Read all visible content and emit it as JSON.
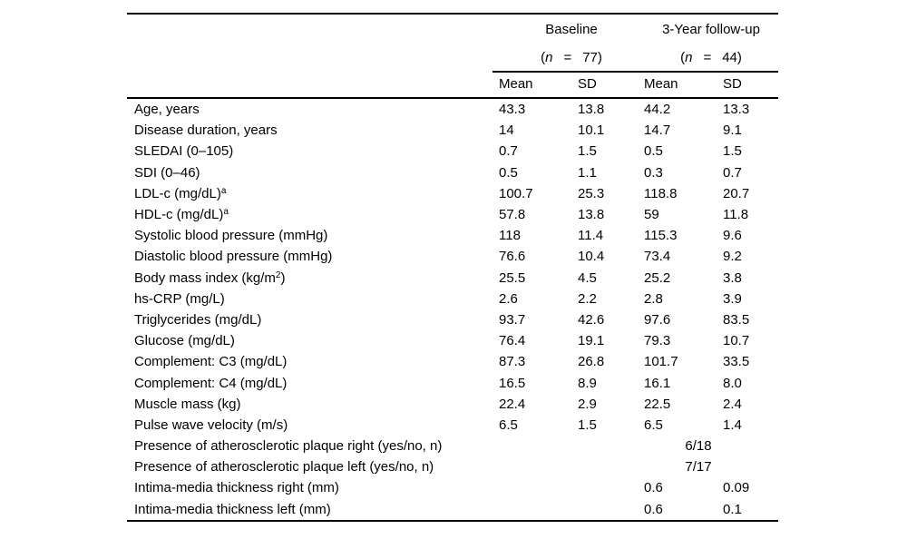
{
  "colors": {
    "text": "#000000",
    "background": "#ffffff",
    "rule": "#000000"
  },
  "table": {
    "header": {
      "groups": [
        {
          "title": "Baseline",
          "n_open": "(",
          "n_symbol": "n",
          "n_eq": "=",
          "n_close": "77)"
        },
        {
          "title": "3-Year follow-up",
          "n_open": "(",
          "n_symbol": "n",
          "n_eq": "=",
          "n_close": "44)"
        }
      ],
      "columns": [
        "Mean",
        "SD",
        "Mean",
        "SD"
      ]
    },
    "rows": [
      {
        "label_pre": "Age, years",
        "label_sup": "",
        "label_post": "",
        "values": [
          "43.3",
          "13.8",
          "44.2",
          "13.3"
        ]
      },
      {
        "label_pre": "Disease duration, years",
        "label_sup": "",
        "label_post": "",
        "values": [
          "14",
          "10.1",
          "14.7",
          "9.1"
        ]
      },
      {
        "label_pre": "SLEDAI (0–105)",
        "label_sup": "",
        "label_post": "",
        "values": [
          "0.7",
          "1.5",
          "0.5",
          "1.5"
        ]
      },
      {
        "label_pre": "SDI (0–46)",
        "label_sup": "",
        "label_post": "",
        "values": [
          "0.5",
          "1.1",
          "0.3",
          "0.7"
        ]
      },
      {
        "label_pre": "LDL-c (mg/dL)",
        "label_sup": "a",
        "label_post": "",
        "values": [
          "100.7",
          "25.3",
          "118.8",
          "20.7"
        ]
      },
      {
        "label_pre": "HDL-c (mg/dL)",
        "label_sup": "a",
        "label_post": "",
        "values": [
          "57.8",
          "13.8",
          "59",
          "11.8"
        ]
      },
      {
        "label_pre": "Systolic blood pressure (mmHg)",
        "label_sup": "",
        "label_post": "",
        "values": [
          "118",
          "11.4",
          "115.3",
          "9.6"
        ]
      },
      {
        "label_pre": "Diastolic blood pressure (mmHg)",
        "label_sup": "",
        "label_post": "",
        "values": [
          "76.6",
          "10.4",
          "73.4",
          "9.2"
        ]
      },
      {
        "label_pre": "Body mass index (kg/m",
        "label_sup": "2",
        "label_post": ")",
        "values": [
          "25.5",
          "4.5",
          "25.2",
          "3.8"
        ]
      },
      {
        "label_pre": "hs-CRP (mg/L)",
        "label_sup": "",
        "label_post": "",
        "values": [
          "2.6",
          "2.2",
          "2.8",
          "3.9"
        ]
      },
      {
        "label_pre": "Triglycerides (mg/dL)",
        "label_sup": "",
        "label_post": "",
        "values": [
          "93.7",
          "42.6",
          "97.6",
          "83.5"
        ]
      },
      {
        "label_pre": "Glucose (mg/dL)",
        "label_sup": "",
        "label_post": "",
        "values": [
          "76.4",
          "19.1",
          "79.3",
          "10.7"
        ]
      },
      {
        "label_pre": "Complement: C3 (mg/dL)",
        "label_sup": "",
        "label_post": "",
        "values": [
          "87.3",
          "26.8",
          "101.7",
          "33.5"
        ]
      },
      {
        "label_pre": "Complement: C4 (mg/dL)",
        "label_sup": "",
        "label_post": "",
        "values": [
          "16.5",
          "8.9",
          "16.1",
          "8.0"
        ]
      },
      {
        "label_pre": "Muscle mass (kg)",
        "label_sup": "",
        "label_post": "",
        "values": [
          "22.4",
          "2.9",
          "22.5",
          "2.4"
        ]
      },
      {
        "label_pre": "Pulse wave velocity (m/s)",
        "label_sup": "",
        "label_post": "",
        "values": [
          "6.5",
          "1.5",
          "6.5",
          "1.4"
        ]
      },
      {
        "label_pre": "Presence of atherosclerotic plaque right (yes/no, n)",
        "label_sup": "",
        "label_post": "",
        "values": [
          "",
          "",
          "",
          ""
        ],
        "followup_merged": "6/18"
      },
      {
        "label_pre": "Presence of atherosclerotic plaque left (yes/no, n)",
        "label_sup": "",
        "label_post": "",
        "values": [
          "",
          "",
          "",
          ""
        ],
        "followup_merged": "7/17"
      },
      {
        "label_pre": "Intima-media thickness right (mm)",
        "label_sup": "",
        "label_post": "",
        "values": [
          "",
          "",
          "0.6",
          "0.09"
        ]
      },
      {
        "label_pre": "Intima-media thickness left (mm)",
        "label_sup": "",
        "label_post": "",
        "values": [
          "",
          "",
          "0.6",
          "0.1"
        ]
      }
    ]
  }
}
